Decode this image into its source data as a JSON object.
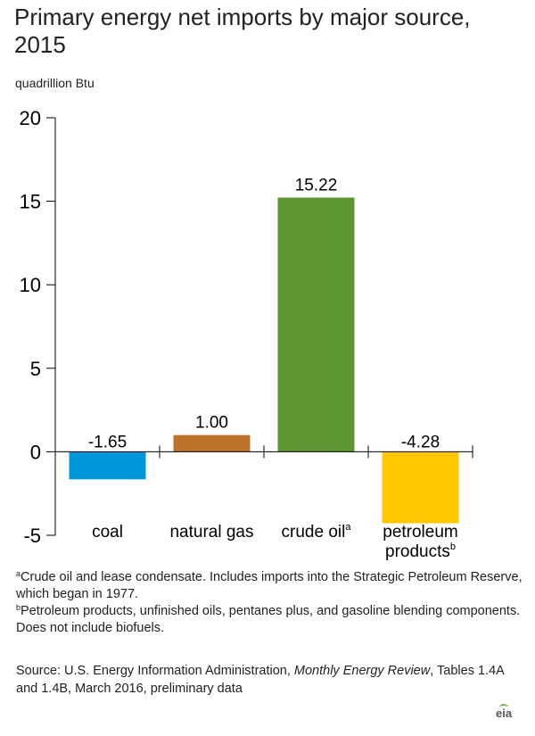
{
  "title": "Primary energy net imports by major source, 2015",
  "unit_label": "quadrillion Btu",
  "chart_data": {
    "type": "bar",
    "title": "Primary energy net imports by major source, 2015",
    "ylabel": "quadrillion Btu",
    "ylim": [
      -5,
      20
    ],
    "yticks": [
      -5,
      0,
      5,
      10,
      15,
      20
    ],
    "grid": false,
    "categories": [
      "coal",
      "natural gas",
      "crude oil",
      "petroleum products"
    ],
    "category_superscripts": [
      "",
      "",
      "a",
      "b"
    ],
    "values": [
      -1.65,
      1.0,
      15.22,
      -4.28
    ],
    "value_labels": [
      "-1.65",
      "1.00",
      "15.22",
      "-4.28"
    ],
    "colors": [
      "#0096d7",
      "#bd732a",
      "#5d9732",
      "#ffc800"
    ]
  },
  "footnotes": {
    "a": {
      "marker": "a",
      "text": "Crude oil and lease condensate. Includes imports into the Strategic Petroleum Reserve, which began in 1977."
    },
    "b": {
      "marker": "b",
      "text": "Petroleum products, unfinished oils, pentanes plus, and gasoline blending components. Does not include biofuels."
    }
  },
  "source": {
    "prefix": "Source: U.S. Energy Information Administration, ",
    "publication": "Monthly Energy Review",
    "suffix": ", Tables 1.4A and 1.4B, March 2016, preliminary data"
  },
  "logo": {
    "text": "eia"
  }
}
